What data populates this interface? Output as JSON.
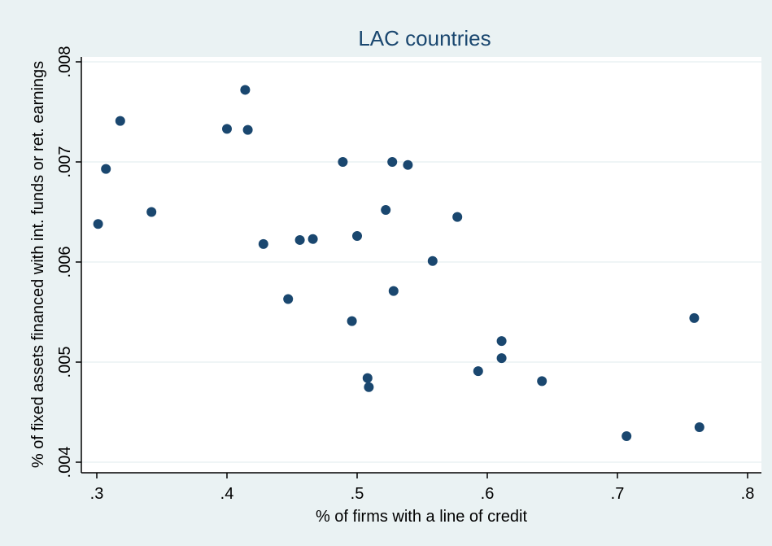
{
  "chart_data": {
    "type": "scatter",
    "title": "LAC countries",
    "xlabel": "% of firms with a line of credit",
    "ylabel": "% of fixed assets financed with int. funds or ret. earnings",
    "xlim": [
      0.3,
      0.8
    ],
    "ylim": [
      0.004,
      0.008
    ],
    "xticks": [
      0.3,
      0.4,
      0.5,
      0.6,
      0.7,
      0.8
    ],
    "xtick_labels": [
      ".3",
      ".4",
      ".5",
      ".6",
      ".7",
      ".8"
    ],
    "yticks": [
      0.004,
      0.005,
      0.006,
      0.007,
      0.008
    ],
    "ytick_labels": [
      ".004",
      ".005",
      ".006",
      ".007",
      ".008"
    ],
    "grid": "horizontal",
    "legend": "none",
    "colors": {
      "background": "#eaf2f3",
      "plot_background": "#ffffff",
      "marker": "#1a476f",
      "title": "#1a476f",
      "grid": "#eaf2f3",
      "axis": "#000000"
    },
    "points": [
      {
        "x": 0.301,
        "y": 0.00638
      },
      {
        "x": 0.307,
        "y": 0.00693
      },
      {
        "x": 0.318,
        "y": 0.00741
      },
      {
        "x": 0.342,
        "y": 0.0065
      },
      {
        "x": 0.4,
        "y": 0.00733
      },
      {
        "x": 0.414,
        "y": 0.00772
      },
      {
        "x": 0.416,
        "y": 0.00732
      },
      {
        "x": 0.428,
        "y": 0.00618
      },
      {
        "x": 0.447,
        "y": 0.00563
      },
      {
        "x": 0.456,
        "y": 0.00622
      },
      {
        "x": 0.466,
        "y": 0.00623
      },
      {
        "x": 0.489,
        "y": 0.007
      },
      {
        "x": 0.496,
        "y": 0.00541
      },
      {
        "x": 0.5,
        "y": 0.00626
      },
      {
        "x": 0.508,
        "y": 0.00484
      },
      {
        "x": 0.509,
        "y": 0.00475
      },
      {
        "x": 0.522,
        "y": 0.00652
      },
      {
        "x": 0.527,
        "y": 0.007
      },
      {
        "x": 0.528,
        "y": 0.00571
      },
      {
        "x": 0.539,
        "y": 0.00697
      },
      {
        "x": 0.558,
        "y": 0.00601
      },
      {
        "x": 0.577,
        "y": 0.00645
      },
      {
        "x": 0.593,
        "y": 0.00491
      },
      {
        "x": 0.611,
        "y": 0.00521
      },
      {
        "x": 0.611,
        "y": 0.00504
      },
      {
        "x": 0.642,
        "y": 0.00481
      },
      {
        "x": 0.707,
        "y": 0.00426
      },
      {
        "x": 0.759,
        "y": 0.00544
      },
      {
        "x": 0.763,
        "y": 0.00435
      }
    ]
  }
}
